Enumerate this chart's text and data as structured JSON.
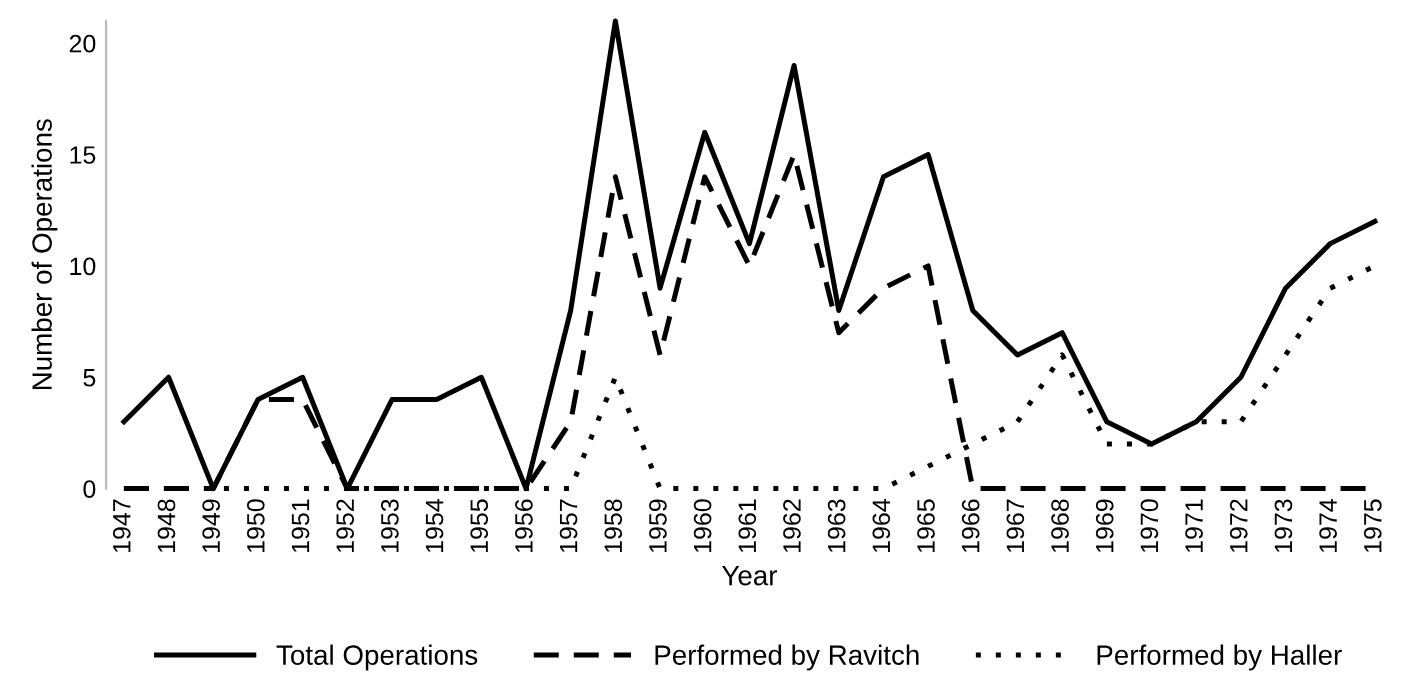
{
  "chart_data": {
    "type": "line",
    "xlabel": "Year",
    "ylabel": "Number of Operations",
    "categories": [
      "1947",
      "1948",
      "1949",
      "1950",
      "1951",
      "1952",
      "1953",
      "1954",
      "1955",
      "1956",
      "1957",
      "1958",
      "1959",
      "1960",
      "1961",
      "1962",
      "1963",
      "1964",
      "1965",
      "1966",
      "1967",
      "1968",
      "1969",
      "1970",
      "1971",
      "1972",
      "1973",
      "1974",
      "1975"
    ],
    "series": [
      {
        "name": "Total Operations",
        "color": "#000000",
        "line_style": "solid",
        "values": [
          3,
          5,
          0,
          4,
          5,
          0,
          4,
          4,
          5,
          0,
          8,
          21,
          9,
          16,
          11,
          19,
          8,
          14,
          15,
          8,
          6,
          7,
          3,
          2,
          3,
          5,
          9,
          11,
          12
        ]
      },
      {
        "name": "Performed by Ravitch",
        "color": "#000000",
        "line_style": "dashed",
        "values": [
          0,
          0,
          0,
          4,
          4,
          0,
          0,
          0,
          0,
          0,
          3,
          14,
          6,
          14,
          10,
          15,
          7,
          9,
          10,
          0,
          0,
          0,
          0,
          0,
          0,
          0,
          0,
          0,
          0
        ]
      },
      {
        "name": "Performed by Haller",
        "color": "#000000",
        "line_style": "dotted",
        "values": [
          0,
          0,
          0,
          0,
          0,
          0,
          0,
          0,
          0,
          0,
          0,
          5,
          0,
          0,
          0,
          0,
          0,
          0,
          1,
          2,
          3,
          6,
          2,
          2,
          3,
          3,
          6,
          9,
          10
        ]
      }
    ],
    "ylim": [
      0,
      21
    ],
    "yticks": [
      0,
      5,
      10,
      15,
      20
    ],
    "grid": false,
    "legend": "bottom",
    "marker": "none"
  }
}
